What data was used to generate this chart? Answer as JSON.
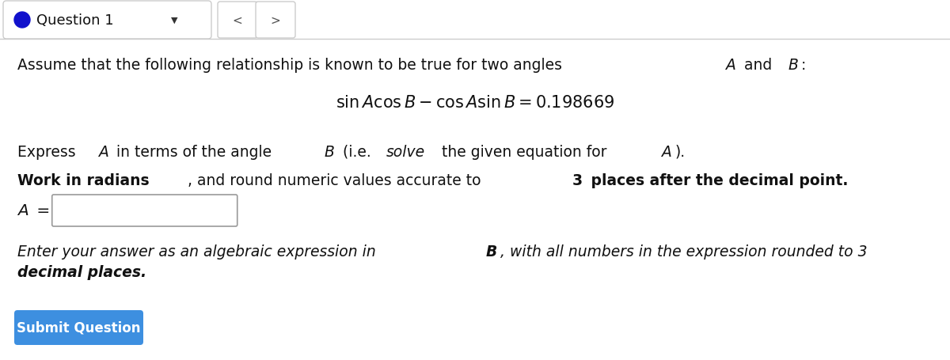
{
  "bg_color": "#ffffff",
  "dot_color": "#1111cc",
  "question_label": "Question 1",
  "line1_parts": [
    [
      "Assume that the following relationship is known to be true for two angles ",
      "normal",
      false
    ],
    [
      "A",
      "italic",
      false
    ],
    [
      " and ",
      "normal",
      false
    ],
    [
      "B",
      "italic",
      false
    ],
    [
      ":",
      "normal",
      false
    ]
  ],
  "equation": "$\\sin A\\cos B - \\cos A\\sin B = 0.198669$",
  "line3_parts": [
    [
      "Express ",
      "normal",
      false
    ],
    [
      "A",
      "italic",
      false
    ],
    [
      " in terms of the angle ",
      "normal",
      false
    ],
    [
      "B",
      "italic",
      false
    ],
    [
      " (i.e. ",
      "normal",
      false
    ],
    [
      "solve",
      "italic",
      false
    ],
    [
      " the given equation for ",
      "normal",
      false
    ],
    [
      "A",
      "italic",
      false
    ],
    [
      ").",
      "normal",
      false
    ]
  ],
  "line4_parts": [
    [
      "Work in radians",
      "bold",
      false
    ],
    [
      ", and round numeric values accurate to ",
      "normal",
      false
    ],
    [
      "3",
      "bold",
      false
    ],
    [
      " places after the decimal point.",
      "bold",
      false
    ]
  ],
  "input_label_parts": [
    [
      "A",
      "italic",
      false
    ],
    [
      " =",
      "normal",
      false
    ]
  ],
  "note_parts_line1": [
    [
      "Enter your answer as an algebraic expression in ",
      "italic",
      false
    ],
    [
      "B",
      "italic_bold",
      false
    ],
    [
      ", with all numbers in the expression rounded to 3",
      "italic",
      false
    ]
  ],
  "note_parts_line2": [
    [
      "decimal places.",
      "italic_bold",
      false
    ]
  ],
  "button_text": "Submit Question",
  "button_color": "#3d8fe0",
  "button_text_color": "#ffffff",
  "fs_body": 13.5,
  "fs_eq": 15,
  "fs_header": 13
}
